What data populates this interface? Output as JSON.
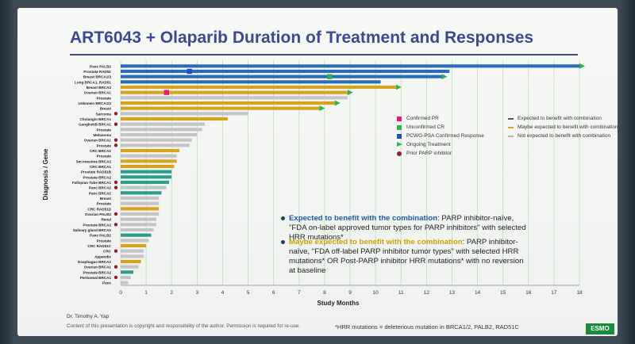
{
  "slide": {
    "title": "ART6043 + Olaparib Duration of Treatment and Responses",
    "presenter": "Dr. Timothy A. Yap",
    "copyright": "Content of this presentation is copyright and responsibility of the author. Permission is required for re-use.",
    "footnote": "*HRR mutations = deleterious mutation in BRCA1/2, PALB2, RAD51C",
    "logo_text": "ESMO"
  },
  "legend": {
    "markers": [
      {
        "label": "Confirmed PR",
        "color": "#e8197d",
        "shape": "square"
      },
      {
        "label": "Unconfirmed CR",
        "color": "#2fb34a",
        "shape": "square"
      },
      {
        "label": "PCWG-PSA Confirmed Response",
        "color": "#1c4fbf",
        "shape": "square"
      },
      {
        "label": "Ongoing Treatment",
        "color": "#2fb34a",
        "shape": "triangle"
      },
      {
        "label": "Prior PARP inhibitor",
        "color": "#8b1c3c",
        "shape": "circle"
      }
    ],
    "categories": [
      {
        "label": "Expected to benefit with combination",
        "color": "#555555"
      },
      {
        "label": "Maybe expected to benefit with combination",
        "color": "#d9a21b"
      },
      {
        "label": "Not expected to benefit with combination",
        "color": "#b8b8b8"
      }
    ]
  },
  "bullets": [
    {
      "highlight": "Expected to benefit with the combination",
      "text": ": PARP inhibitor-naïve, \"FDA on-label approved tumor types for PARP inhibitors\" with selected HRR mutations*"
    },
    {
      "highlight": "Maybe expected to benefit with the combination",
      "text": ": PARP inhibitor-naïve, \"FDA off-label PARP inhibitor tumor types\" with selected HRR mutations* OR Post-PARP inhibitor HRR mutations* with no reversion at baseline"
    }
  ],
  "chart_data": {
    "type": "bar",
    "orientation": "horizontal",
    "title": "ART6043 + Olaparib Duration of Treatment and Responses",
    "xlabel": "Study Months",
    "ylabel": "Diagnosis / Gene",
    "xlim": [
      0,
      18
    ],
    "xticks": [
      0,
      1,
      2,
      3,
      4,
      5,
      6,
      7,
      8,
      9,
      10,
      11,
      12,
      13,
      14,
      15,
      16,
      17,
      18
    ],
    "category_colors": {
      "blue": "#2b6cb8",
      "gold": "#d9a21b",
      "teal": "#2a9d8f",
      "gray": "#c4c4c4"
    },
    "bars": [
      {
        "label": "Panc PALB2",
        "value": 18.0,
        "color": "blue",
        "ongoing": true
      },
      {
        "label": "Prostate RAD51",
        "value": 12.9,
        "color": "blue",
        "marker": "pcwg",
        "marker_x": 2.7
      },
      {
        "label": "Breast BRCA1/2",
        "value": 12.6,
        "color": "blue",
        "ongoing": true,
        "marker": "ucr",
        "marker_x": 8.2
      },
      {
        "label": "Lung BRCA1, RAD51",
        "value": 10.2,
        "color": "blue"
      },
      {
        "label": "Breast BRCA2",
        "value": 10.8,
        "color": "gold",
        "ongoing": true
      },
      {
        "label": "Ovarian BRCA1",
        "value": 8.9,
        "color": "gold",
        "ongoing": true,
        "marker": "pr",
        "marker_x": 1.8
      },
      {
        "label": "Prostate",
        "value": 8.9,
        "color": "gray"
      },
      {
        "label": "Unknown BRCA1/2",
        "value": 8.4,
        "color": "gold",
        "ongoing": true
      },
      {
        "label": "Breast",
        "value": 7.8,
        "color": "gold",
        "ongoing": true
      },
      {
        "label": "Sarcoma",
        "value": 5.0,
        "color": "gray",
        "prior": true
      },
      {
        "label": "Cholangio BRCA1",
        "value": 4.2,
        "color": "gold"
      },
      {
        "label": "GanglioNB BRCA1",
        "value": 3.3,
        "color": "gray",
        "prior": true
      },
      {
        "label": "Prostate",
        "value": 3.2,
        "color": "gray"
      },
      {
        "label": "Melanoma",
        "value": 3.0,
        "color": "gray"
      },
      {
        "label": "Ovarian BRCA1",
        "value": 2.8,
        "color": "gray",
        "prior": true
      },
      {
        "label": "Prostate",
        "value": 2.7,
        "color": "gray",
        "prior": true
      },
      {
        "label": "CRC BRCA2",
        "value": 2.3,
        "color": "gold"
      },
      {
        "label": "Prostate",
        "value": 2.2,
        "color": "gray"
      },
      {
        "label": "Sm Intestine BRCA2",
        "value": 2.2,
        "color": "gold"
      },
      {
        "label": "CRC BRCA1",
        "value": 2.1,
        "color": "gold"
      },
      {
        "label": "Prostate RAD51B",
        "value": 2.0,
        "color": "teal"
      },
      {
        "label": "Prostate BRCA2",
        "value": 2.0,
        "color": "teal"
      },
      {
        "label": "Fallopian Tube BRCA1",
        "value": 1.9,
        "color": "teal",
        "prior": true
      },
      {
        "label": "Panc BRCA2",
        "value": 1.8,
        "color": "gray",
        "prior": true
      },
      {
        "label": "Panc BRCA2",
        "value": 1.6,
        "color": "teal"
      },
      {
        "label": "Breast",
        "value": 1.5,
        "color": "gray"
      },
      {
        "label": "Prostate",
        "value": 1.5,
        "color": "gray"
      },
      {
        "label": "CRC RAD51D",
        "value": 1.5,
        "color": "gold"
      },
      {
        "label": "Ovarian PALB2",
        "value": 1.5,
        "color": "gray",
        "prior": true
      },
      {
        "label": "Renal",
        "value": 1.4,
        "color": "gray"
      },
      {
        "label": "Prostate BRCA2",
        "value": 1.4,
        "color": "gray",
        "prior": true
      },
      {
        "label": "Salivary gland BRCA2",
        "value": 1.3,
        "color": "gray"
      },
      {
        "label": "Panc PALB2",
        "value": 1.2,
        "color": "teal"
      },
      {
        "label": "Prostate",
        "value": 1.1,
        "color": "gray"
      },
      {
        "label": "CRC RAD51C",
        "value": 1.0,
        "color": "gold"
      },
      {
        "label": "CRC",
        "value": 0.9,
        "color": "gray",
        "prior": true
      },
      {
        "label": "Appendix",
        "value": 0.9,
        "color": "gray"
      },
      {
        "label": "Esophagus BRCA2",
        "value": 0.8,
        "color": "gold"
      },
      {
        "label": "Ovarian BRCA1",
        "value": 0.7,
        "color": "gray",
        "prior": true
      },
      {
        "label": "Prostate BRCA2",
        "value": 0.5,
        "color": "teal"
      },
      {
        "label": "Peritoneal BRCA1",
        "value": 0.4,
        "color": "gray",
        "prior": true
      },
      {
        "label": "Panc",
        "value": 0.3,
        "color": "gray"
      }
    ]
  }
}
